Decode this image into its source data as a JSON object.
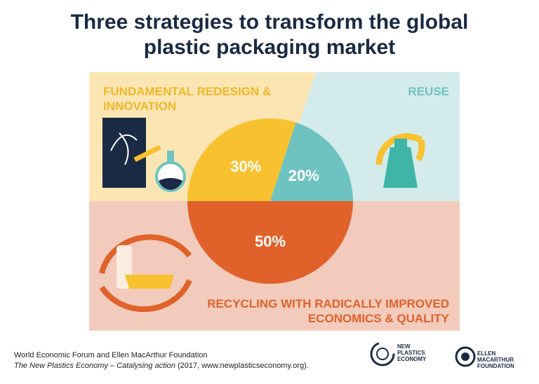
{
  "chart_data": {
    "type": "pie",
    "title": "Three strategies to transform the global plastic packaging market",
    "categories": [
      "FUNDAMENTAL REDESIGN & INNOVATION",
      "REUSE",
      "RECYCLING WITH RADICALLY IMPROVED ECONOMICS & QUALITY"
    ],
    "values": [
      30,
      20,
      50
    ],
    "value_labels": [
      "30%",
      "20%",
      "50%"
    ],
    "colors": [
      "#f8c12f",
      "#6ec3c0",
      "#e0622a"
    ]
  },
  "source": {
    "line1": "World Economic Forum and Ellen MacArthur Foundation",
    "title_italic": "The New Plastics Economy – Catalysing action",
    "details": "(2017, www.newplasticseconomy.org)."
  },
  "logos": {
    "npe": "NEW PLASTICS ECONOMY",
    "emf": "ELLEN MACARTHUR FOUNDATION"
  }
}
